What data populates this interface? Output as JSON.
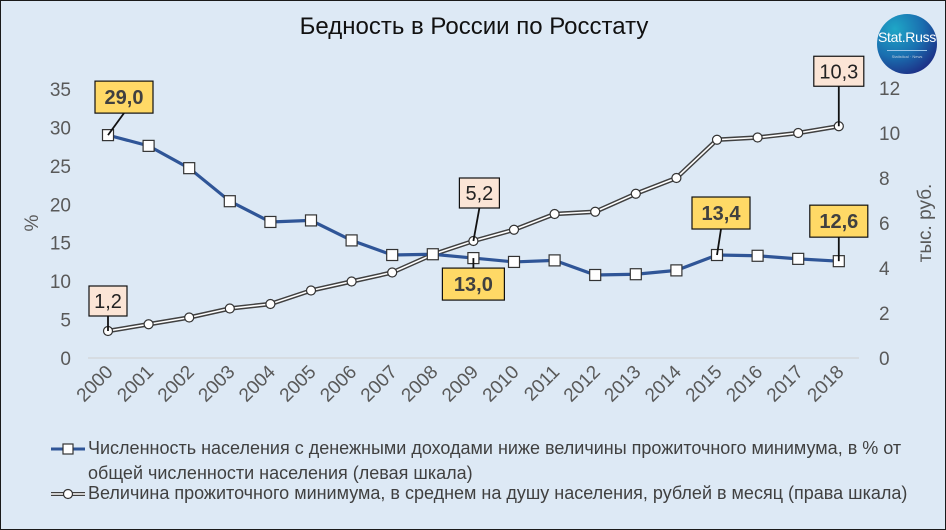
{
  "title": "Бедность в России по Росстату",
  "logo": {
    "text": "Stat.Russ",
    "subtitle": "Statistical · News"
  },
  "chart_data": {
    "type": "line",
    "title": "Бедность в России по Росстату",
    "categories": [
      "2000",
      "2001",
      "2002",
      "2003",
      "2004",
      "2005",
      "2006",
      "2007",
      "2008",
      "2009",
      "2010",
      "2011",
      "2012",
      "2013",
      "2014",
      "2015",
      "2016",
      "2017",
      "2018"
    ],
    "series": [
      {
        "name": "Численность населения с денежными доходами ниже величины прожиточного минимума, в % от общей численности населения (левая шкала)",
        "axis": "left",
        "color": "#2f5597",
        "marker": "square",
        "values": [
          29.0,
          27.6,
          24.7,
          20.4,
          17.7,
          17.9,
          15.3,
          13.4,
          13.5,
          13.0,
          12.5,
          12.7,
          10.8,
          10.9,
          11.4,
          13.4,
          13.3,
          12.9,
          12.6
        ]
      },
      {
        "name": "Величина прожиточного минимума, в среднем на душу населения, рублей в месяц (права шкала)",
        "axis": "right",
        "color": "#404040",
        "marker": "circle",
        "values": [
          1.2,
          1.5,
          1.8,
          2.2,
          2.4,
          3.0,
          3.4,
          3.8,
          4.6,
          5.2,
          5.7,
          6.4,
          6.5,
          7.3,
          8.0,
          9.7,
          9.8,
          10.0,
          10.3
        ]
      }
    ],
    "ylabel": "%",
    "ylim": [
      0,
      35
    ],
    "yticks": [
      "0",
      "5",
      "10",
      "15",
      "20",
      "25",
      "30",
      "35"
    ],
    "y2label": "тыс. руб.",
    "y2lim": [
      0,
      12
    ],
    "y2ticks": [
      "0",
      "2",
      "4",
      "6",
      "8",
      "10",
      "12"
    ],
    "annotations": [
      {
        "series": 0,
        "category": "2000",
        "text": "29,0"
      },
      {
        "series": 0,
        "category": "2009",
        "text": "13,0"
      },
      {
        "series": 0,
        "category": "2015",
        "text": "13,4"
      },
      {
        "series": 0,
        "category": "2018",
        "text": "12,6"
      },
      {
        "series": 1,
        "category": "2000",
        "text": "1,2"
      },
      {
        "series": 1,
        "category": "2009",
        "text": "5,2"
      },
      {
        "series": 1,
        "category": "2018",
        "text": "10,3"
      }
    ],
    "grid": false,
    "legend_position": "bottom"
  },
  "legend": [
    {
      "label": "Численность населения с денежными доходами ниже величины прожиточного минимума, в % от общей численности населения (левая шкала)"
    },
    {
      "label": "Величина прожиточного минимума, в среднем на душу населения, рублей в месяц (права шкала)"
    }
  ],
  "colors": {
    "background": "#dde9f5",
    "series_poverty": "#2f5597",
    "series_minimum": "#404040",
    "label_poverty_fill": "#ffd966",
    "label_minimum_fill": "#fbe5d6"
  }
}
